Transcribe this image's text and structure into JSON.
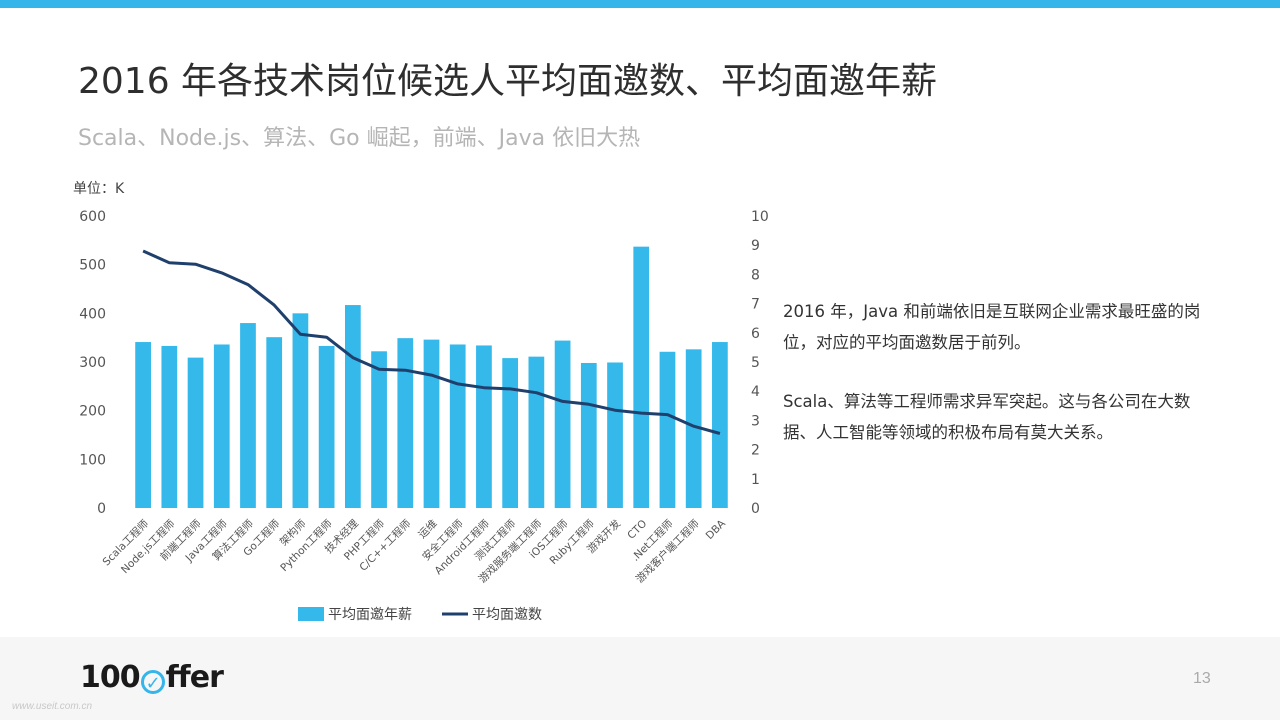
{
  "slide": {
    "title": "2016 年各技术岗位候选人平均面邀数、平均面邀年薪",
    "subtitle": "Scala、Node.js、算法、Go 崛起，前端、Java 依旧大热",
    "unit_label": "单位：K",
    "notes": [
      "2016 年，Java 和前端依旧是互联网企业需求最旺盛的岗位，对应的平均面邀数居于前列。",
      "Scala、算法等工程师需求异军突起。这与各公司在大数据、人工智能等领域的积极布局有莫大关系。"
    ],
    "page_number": "13",
    "logo": {
      "text_before": "100",
      "check_glyph": "✓",
      "text_after": "ffer"
    },
    "watermark": "www.useit.com.cn"
  },
  "colors": {
    "bar": "#35b8ea",
    "line": "#1f3f6c",
    "accent": "#35b5ea"
  },
  "chart_data": {
    "type": "bar",
    "categories": [
      "Scala工程师",
      "Node.js工程师",
      "前端工程师",
      "Java工程师",
      "算法工程师",
      "Go工程师",
      "架构师",
      "Python工程师",
      "技术经理",
      "PHP工程师",
      "C/C++工程师",
      "运维",
      "安全工程师",
      "Android工程师",
      "测试工程师",
      "游戏服务端工程师",
      "iOS工程师",
      "Ruby工程师",
      "游戏开发",
      "CTO",
      ".Net工程师",
      "游戏客户端工程师",
      "DBA"
    ],
    "series": [
      {
        "name": "平均面邀年薪",
        "type": "bar",
        "axis": "left",
        "values": [
          341,
          333,
          309,
          336,
          380,
          351,
          400,
          333,
          417,
          322,
          349,
          346,
          336,
          334,
          308,
          311,
          344,
          298,
          299,
          537,
          321,
          326,
          341
        ]
      },
      {
        "name": "平均面邀数",
        "type": "line",
        "axis": "right",
        "values": [
          8.8,
          8.4,
          8.35,
          8.05,
          7.65,
          6.95,
          5.95,
          5.85,
          5.15,
          4.75,
          4.72,
          4.55,
          4.25,
          4.12,
          4.08,
          3.95,
          3.65,
          3.55,
          3.35,
          3.25,
          3.2,
          2.8,
          2.55
        ]
      }
    ],
    "y_left": {
      "min": 0,
      "max": 600,
      "ticks": [
        "0",
        "100",
        "200",
        "300",
        "400",
        "500",
        "600"
      ]
    },
    "y_right": {
      "min": 0,
      "max": 10,
      "ticks": [
        "0",
        "1",
        "2",
        "3",
        "4",
        "5",
        "6",
        "7",
        "8",
        "9",
        "10"
      ]
    },
    "grid": false,
    "legend_position": "bottom"
  }
}
